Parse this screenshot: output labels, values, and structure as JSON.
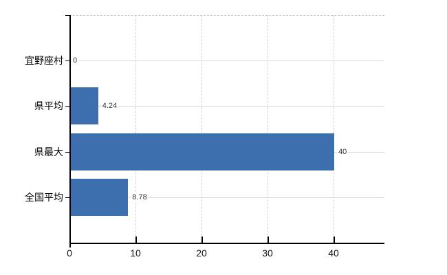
{
  "chart_data": {
    "type": "bar",
    "orientation": "horizontal",
    "categories": [
      "宜野座村",
      "県平均",
      "県最大",
      "全国平均"
    ],
    "values": [
      0,
      4.24,
      40,
      8.78
    ],
    "value_labels": [
      "0",
      "4.24",
      "40",
      "8.78"
    ],
    "x_ticks": [
      0,
      10,
      20,
      30,
      40
    ],
    "x_tick_labels": [
      "0",
      "10",
      "20",
      "30",
      "40"
    ],
    "xlim": [
      0,
      47.7
    ],
    "grid": "on",
    "legend_position": "none",
    "colors": {
      "bar": "#3d6fae",
      "axis": "#000000",
      "horizontal_gridline": "#d5ddd2",
      "vertical_gridline": "#d2d2d2",
      "top_border": "#c9c9c9",
      "value_label": "#333333",
      "tick_label": "#111111",
      "background": "#ffffff"
    }
  }
}
